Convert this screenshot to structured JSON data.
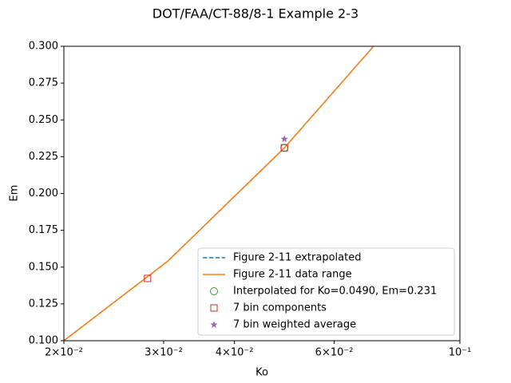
{
  "chart_data": {
    "type": "line",
    "title": "DOT/FAA/CT-88/8-1 Example 2-3",
    "x_label": "Ko",
    "y_label": "Em",
    "xscale": "log",
    "legend": "lower right",
    "xlim": [
      0.02,
      0.1
    ],
    "ylim": [
      0.1,
      0.3
    ],
    "xticks": [
      {
        "value": 0.02,
        "label": "2×10⁻²"
      },
      {
        "value": 0.03,
        "label": "3×10⁻²"
      },
      {
        "value": 0.04,
        "label": "4×10⁻²"
      },
      {
        "value": 0.06,
        "label": "6×10⁻²"
      },
      {
        "value": 0.1,
        "label": "10⁻¹"
      }
    ],
    "yticks": [
      {
        "value": 0.1,
        "label": "0.100"
      },
      0.125,
      {
        "value": 0.15,
        "label": "0.150"
      },
      0.175,
      {
        "value": 0.2,
        "label": "0.200"
      },
      0.225,
      {
        "value": 0.25,
        "label": "0.250"
      },
      0.275,
      {
        "value": 0.3,
        "label": "0.300"
      }
    ],
    "series": [
      {
        "name": "Figure 2-11 extrapolated",
        "color": "#1f77b4",
        "linestyle": "dashed",
        "x": [
          0.02,
          0.0305,
          0.049,
          0.0704
        ],
        "values": [
          0.1,
          0.154,
          0.231,
          0.3
        ]
      },
      {
        "name": "Figure 2-11 data range",
        "color": "#ff7f0e",
        "linestyle": "solid",
        "x": [
          0.02,
          0.0305,
          0.049,
          0.0704
        ],
        "values": [
          0.1,
          0.154,
          0.231,
          0.3
        ]
      },
      {
        "name": "Interpolated for Ko=0.0490, Em=0.231",
        "color": "#2ca02c",
        "marker": "circle",
        "x": [
          0.049
        ],
        "values": [
          0.231
        ]
      },
      {
        "name": "7 bin components",
        "color": "#d62728",
        "marker": "square",
        "x": [
          0.0281,
          0.049
        ],
        "values": [
          0.1423,
          0.231
        ]
      },
      {
        "name": "7 bin weighted average",
        "color": "#9467bd",
        "marker": "star",
        "x": [
          0.049
        ],
        "values": [
          0.237
        ]
      }
    ]
  }
}
